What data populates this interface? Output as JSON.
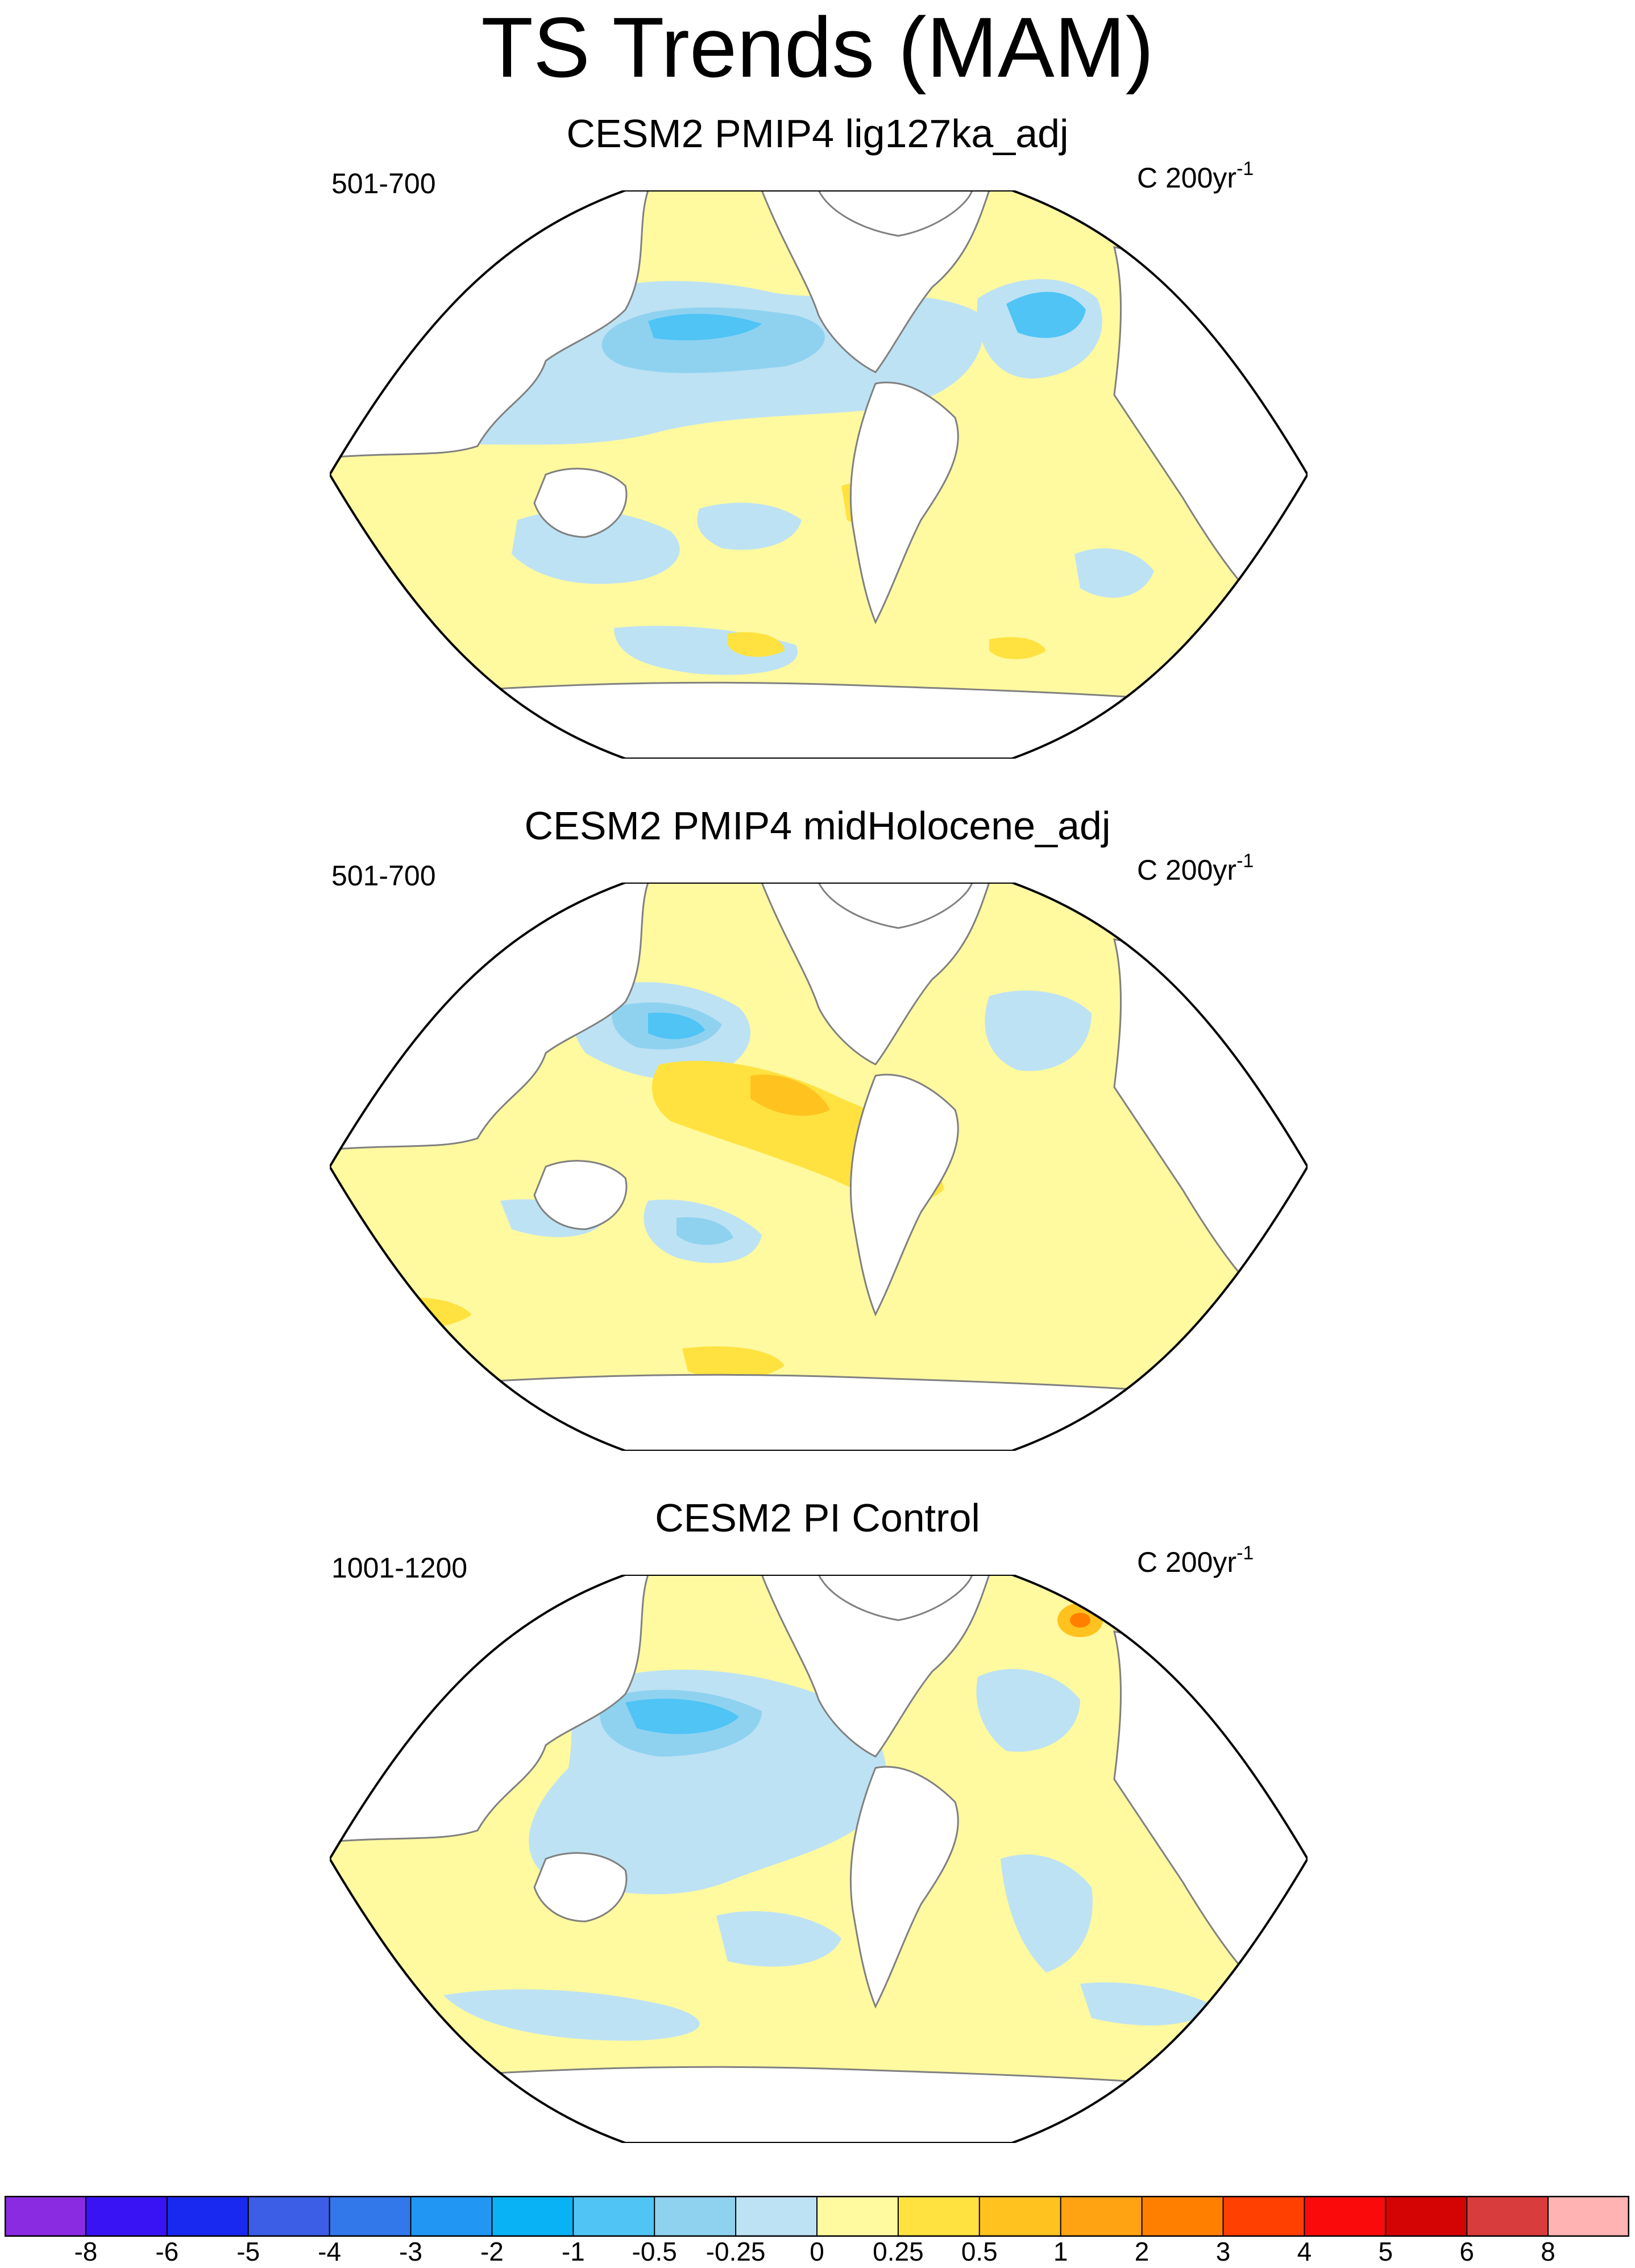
{
  "title": "TS Trends (MAM)",
  "panels": [
    {
      "title": "CESM2 PMIP4 lig127ka_adj",
      "left_label": "501-700",
      "units_base": "C 200yr",
      "units_exp": "-1"
    },
    {
      "title": "CESM2 PMIP4 midHolocene_adj",
      "left_label": "501-700",
      "units_base": "C 200yr",
      "units_exp": "-1"
    },
    {
      "title": "CESM2 PI Control",
      "left_label": "1001-1200",
      "units_base": "C 200yr",
      "units_exp": "-1"
    }
  ],
  "colorbar": {
    "labels": [
      "-8",
      "-6",
      "-5",
      "-4",
      "-3",
      "-2",
      "-1",
      "-0.5",
      "-0.25",
      "0",
      "0.25",
      "0.5",
      "1",
      "2",
      "3",
      "4",
      "5",
      "6",
      "8"
    ],
    "colors": [
      "#8a2be2",
      "#3a13f5",
      "#1a29f0",
      "#3c5ee6",
      "#3278ea",
      "#2196f3",
      "#09b2f5",
      "#4fc4f5",
      "#8fd2f0",
      "#bde2f4",
      "#fff9a0",
      "#ffe240",
      "#ffc21f",
      "#ffa312",
      "#ff8000",
      "#ff4000",
      "#fa0a0a",
      "#d40404",
      "#d93c3c",
      "#ffb3b3"
    ]
  },
  "colors": {
    "land": "#ffffff",
    "coast": "#808080",
    "ocean_default": "#fff9a0"
  }
}
